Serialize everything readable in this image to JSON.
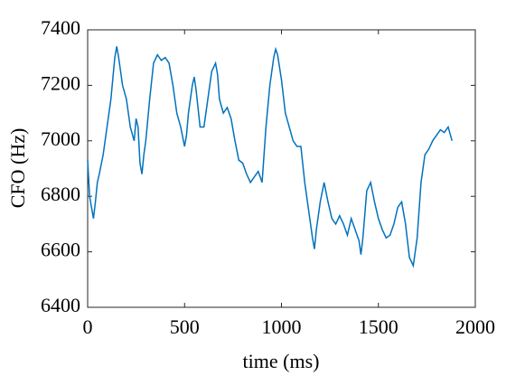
{
  "chart_data": {
    "type": "line",
    "xlabel": "time (ms)",
    "ylabel": "CFO (Hz)",
    "xlim": [
      0,
      2000
    ],
    "xticks": [
      0,
      500,
      1000,
      1500,
      2000
    ],
    "ylim": [
      6400,
      7400
    ],
    "yticks": [
      6400,
      6600,
      6800,
      7000,
      7200,
      7400
    ],
    "x": [
      0,
      10,
      20,
      30,
      40,
      50,
      60,
      80,
      100,
      120,
      140,
      150,
      160,
      180,
      200,
      220,
      240,
      250,
      260,
      270,
      280,
      290,
      300,
      320,
      340,
      360,
      380,
      400,
      420,
      440,
      460,
      480,
      500,
      510,
      520,
      540,
      550,
      560,
      580,
      600,
      620,
      640,
      660,
      670,
      680,
      700,
      720,
      740,
      760,
      780,
      800,
      820,
      840,
      860,
      880,
      900,
      920,
      940,
      960,
      970,
      980,
      1000,
      1020,
      1040,
      1060,
      1080,
      1100,
      1120,
      1140,
      1160,
      1170,
      1180,
      1200,
      1220,
      1240,
      1260,
      1280,
      1300,
      1320,
      1340,
      1360,
      1380,
      1400,
      1410,
      1420,
      1440,
      1460,
      1480,
      1500,
      1520,
      1540,
      1560,
      1580,
      1600,
      1620,
      1640,
      1660,
      1680,
      1700,
      1720,
      1740,
      1760,
      1780,
      1800,
      1820,
      1840,
      1860,
      1880
    ],
    "series": [
      {
        "color": "#0072bd",
        "values": [
          6930,
          6800,
          6760,
          6720,
          6780,
          6850,
          6880,
          6950,
          7050,
          7150,
          7300,
          7340,
          7300,
          7200,
          7150,
          7050,
          7000,
          7080,
          7050,
          6920,
          6880,
          6950,
          7000,
          7150,
          7280,
          7310,
          7290,
          7300,
          7280,
          7200,
          7100,
          7050,
          6980,
          7020,
          7100,
          7200,
          7230,
          7180,
          7050,
          7050,
          7150,
          7250,
          7280,
          7240,
          7150,
          7100,
          7120,
          7080,
          7000,
          6930,
          6920,
          6880,
          6850,
          6870,
          6890,
          6850,
          7050,
          7200,
          7300,
          7330,
          7310,
          7220,
          7100,
          7050,
          7000,
          6980,
          6980,
          6850,
          6750,
          6650,
          6610,
          6680,
          6780,
          6850,
          6780,
          6720,
          6700,
          6730,
          6700,
          6660,
          6720,
          6680,
          6640,
          6590,
          6650,
          6820,
          6850,
          6780,
          6720,
          6680,
          6650,
          6660,
          6700,
          6760,
          6780,
          6700,
          6580,
          6550,
          6650,
          6850,
          6950,
          6970,
          7000,
          7020,
          7040,
          7030,
          7050,
          7000
        ]
      }
    ]
  }
}
